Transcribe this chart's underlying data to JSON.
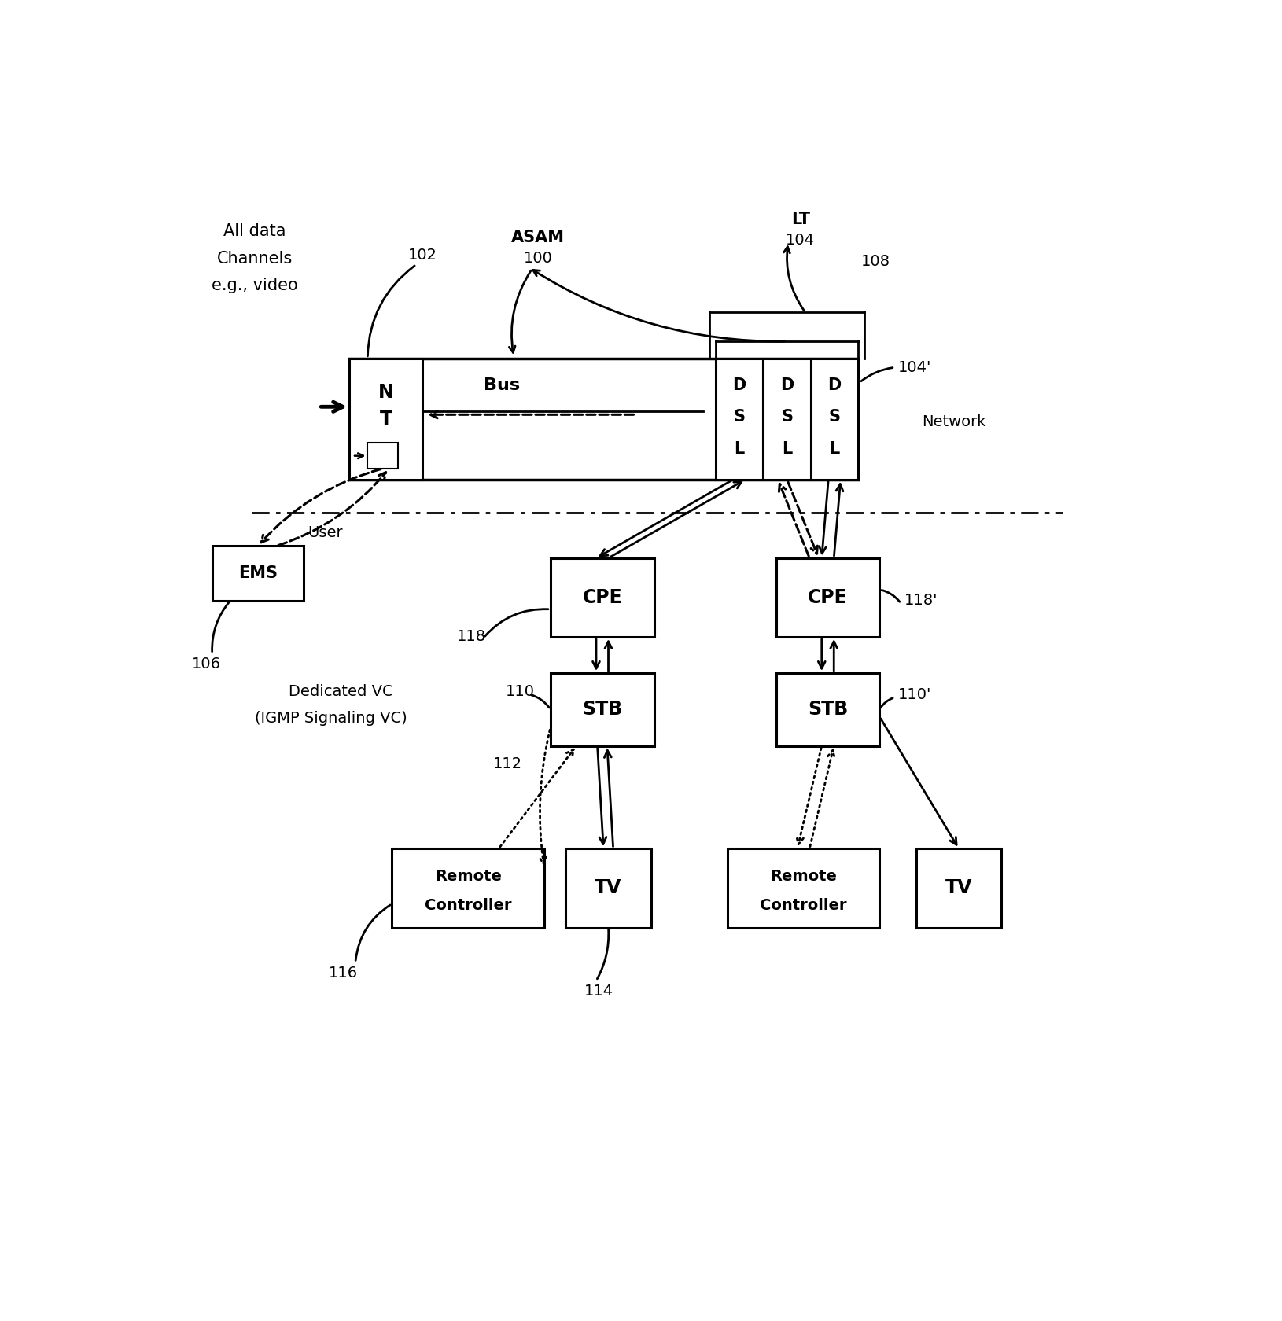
{
  "bg_color": "#ffffff",
  "line_color": "#000000",
  "text_color": "#000000",
  "fig_width": 16.31,
  "fig_height": 16.8,
  "dpi": 100,
  "xlim": [
    0,
    16.31
  ],
  "ylim": [
    0,
    16.8
  ]
}
